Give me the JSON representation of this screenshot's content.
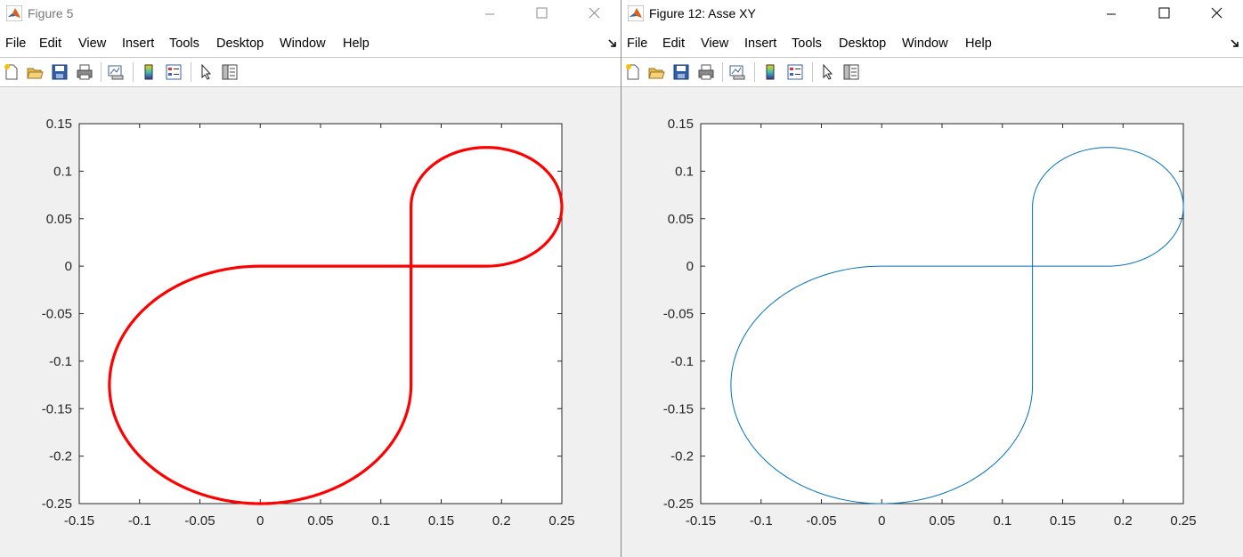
{
  "windows": [
    {
      "title": "Figure 5",
      "menu": [
        "File",
        "Edit",
        "View",
        "Insert",
        "Tools",
        "Desktop",
        "Window",
        "Help"
      ],
      "plot": {
        "line_color": "#ff0000",
        "line_style": "thick",
        "marker": "dots"
      }
    },
    {
      "title": "Figure 12: Asse XY",
      "menu": [
        "File",
        "Edit",
        "View",
        "Insert",
        "Tools",
        "Desktop",
        "Window",
        "Help"
      ],
      "plot": {
        "line_color": "#0072bd",
        "line_style": "thin",
        "marker": "none"
      }
    }
  ],
  "toolbar_icons": [
    "new-figure-icon",
    "open-file-icon",
    "save-icon",
    "print-icon",
    "link-plot-icon",
    "insert-colorbar-icon",
    "insert-legend-icon",
    "edit-plot-arrow-icon",
    "property-inspector-icon"
  ],
  "chart_data": [
    {
      "type": "line",
      "title": "",
      "xlabel": "",
      "ylabel": "",
      "xlim": [
        -0.15,
        0.25
      ],
      "ylim": [
        -0.25,
        0.15
      ],
      "xticks": [
        "-0.15",
        "-0.1",
        "-0.05",
        "0",
        "0.05",
        "0.1",
        "0.15",
        "0.2",
        "0.25"
      ],
      "yticks": [
        "0.15",
        "0.1",
        "0.05",
        "0",
        "-0.05",
        "-0.1",
        "-0.15",
        "-0.2",
        "-0.25"
      ],
      "grid": false,
      "series": [
        {
          "color": "#ff0000",
          "path": [
            {
              "segment": "line",
              "from": [
                0,
                0
              ],
              "to": [
                0.1875,
                0
              ]
            },
            {
              "segment": "arc",
              "center": [
                0.1875,
                0.0625
              ],
              "radius": 0.0625,
              "start_deg": -90,
              "end_deg": 180
            },
            {
              "segment": "line",
              "from": [
                0.125,
                0.0625
              ],
              "to": [
                0.125,
                -0.125
              ]
            },
            {
              "segment": "arc",
              "center": [
                0,
                -0.125
              ],
              "radius": 0.125,
              "start_deg": 0,
              "end_deg": -270
            }
          ]
        }
      ]
    },
    {
      "type": "line",
      "title": "",
      "xlabel": "",
      "ylabel": "",
      "xlim": [
        -0.15,
        0.25
      ],
      "ylim": [
        -0.25,
        0.15
      ],
      "xticks": [
        "-0.15",
        "-0.1",
        "-0.05",
        "0",
        "0.05",
        "0.1",
        "0.15",
        "0.2",
        "0.25"
      ],
      "yticks": [
        "0.15",
        "0.1",
        "0.05",
        "0",
        "-0.05",
        "-0.1",
        "-0.15",
        "-0.2",
        "-0.25"
      ],
      "grid": false,
      "series": [
        {
          "color": "#0072bd",
          "path": [
            {
              "segment": "line",
              "from": [
                0,
                0
              ],
              "to": [
                0.1875,
                0
              ]
            },
            {
              "segment": "arc",
              "center": [
                0.1875,
                0.0625
              ],
              "radius": 0.0625,
              "start_deg": -90,
              "end_deg": 180
            },
            {
              "segment": "line",
              "from": [
                0.125,
                0.0625
              ],
              "to": [
                0.125,
                -0.125
              ]
            },
            {
              "segment": "arc",
              "center": [
                0,
                -0.125
              ],
              "radius": 0.125,
              "start_deg": 0,
              "end_deg": -270
            }
          ]
        }
      ]
    }
  ]
}
